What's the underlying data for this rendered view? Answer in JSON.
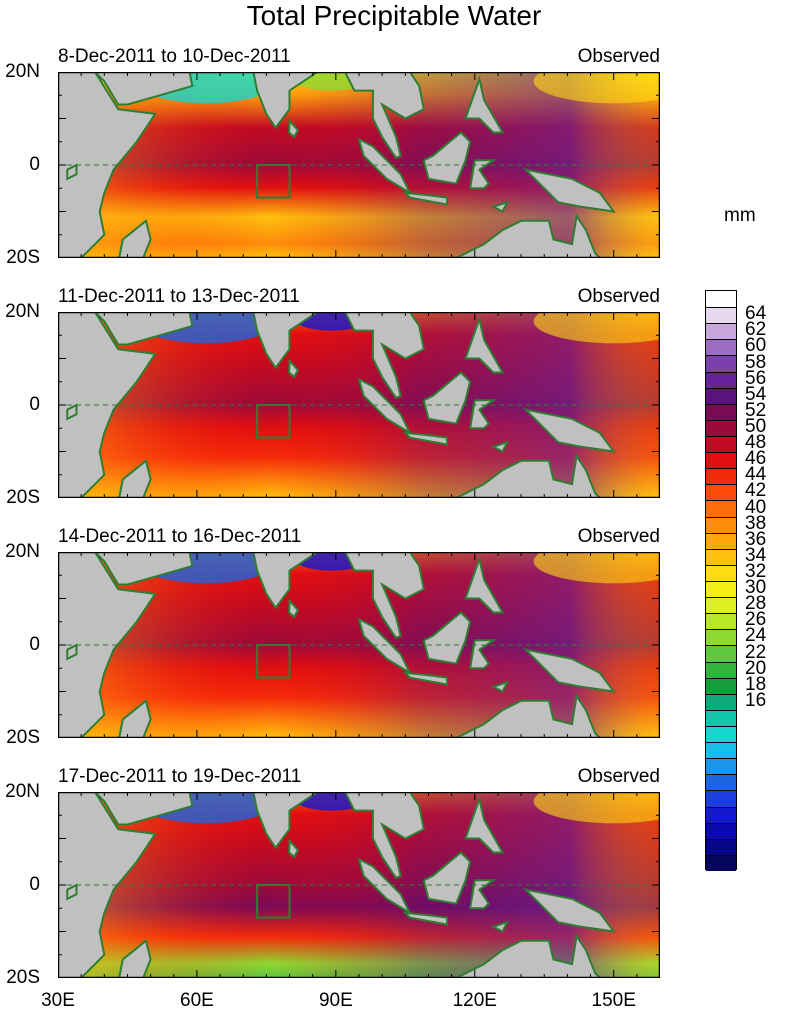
{
  "title": "Total Precipitable Water",
  "unit_label": "mm",
  "panels": [
    {
      "date_range": "8-Dec-2011 to 10-Dec-2011",
      "status": "Observed"
    },
    {
      "date_range": "11-Dec-2011 to 13-Dec-2011",
      "status": "Observed"
    },
    {
      "date_range": "14-Dec-2011 to 16-Dec-2011",
      "status": "Observed"
    },
    {
      "date_range": "17-Dec-2011 to 19-Dec-2011",
      "status": "Observed"
    }
  ],
  "lat_labels": [
    "20N",
    "0",
    "20S"
  ],
  "lon_labels": [
    "30E",
    "60E",
    "90E",
    "120E",
    "150E"
  ],
  "colorbar_labels": [
    "64",
    "62",
    "60",
    "58",
    "56",
    "54",
    "52",
    "50",
    "48",
    "46",
    "44",
    "42",
    "40",
    "38",
    "36",
    "34",
    "32",
    "30",
    "28",
    "26",
    "24",
    "22",
    "20",
    "18",
    "16"
  ],
  "colors": {
    "land": "#c0c0c0",
    "coast": "#2e7d32",
    "box": "#2e7d32"
  },
  "colorbar_colors": [
    "#ffffff",
    "#e6d8ef",
    "#c7a7dc",
    "#9d6dc3",
    "#7a41ad",
    "#64239a",
    "#5a1280",
    "#7a0a55",
    "#9a0a3c",
    "#c00a22",
    "#e00f10",
    "#f42b0a",
    "#fb4a0a",
    "#fd6d0a",
    "#fe8d0b",
    "#ffa70c",
    "#ffc10e",
    "#ffdb12",
    "#f6ec16",
    "#dcf020",
    "#b9e627",
    "#8fd832",
    "#5fc83e",
    "#33b43a",
    "#169e3a",
    "#0fa87a",
    "#10c6aa",
    "#12d6d0",
    "#15c0e8",
    "#1a96e8",
    "#1c66e0",
    "#1c3ee0",
    "#1418d0",
    "#0a08b0",
    "#06068a",
    "#05055a"
  ]
}
